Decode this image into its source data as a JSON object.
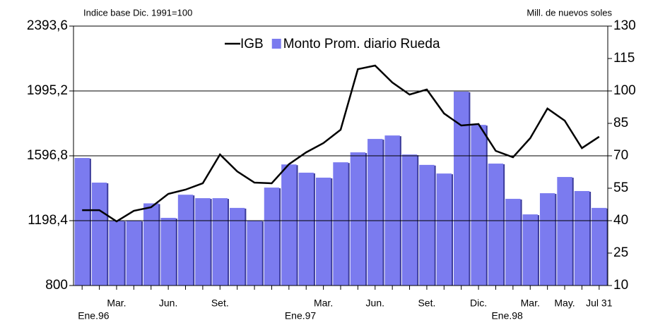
{
  "chart_data": {
    "type": "bar-line",
    "y_label": "Indice base Dic. 1991=100",
    "y2_label": "Mill. de nuevos soles",
    "categories": [
      "Ene.96",
      null,
      "Mar.",
      null,
      null,
      "Jun.",
      null,
      null,
      "Set.",
      null,
      null,
      null,
      "Ene.97",
      null,
      "Mar.",
      null,
      null,
      "Jun.",
      null,
      null,
      "Set.",
      null,
      null,
      "Dic.",
      "Ene.98",
      null,
      "Mar.",
      null,
      "May.",
      null,
      "Jul 31"
    ],
    "series": [
      {
        "name": "IGB",
        "type": "line",
        "color": "#000000",
        "axis": "y",
        "values": [
          1263,
          1263,
          1194,
          1259,
          1281,
          1363,
          1389,
          1428,
          1605,
          1501,
          1432,
          1428,
          1545,
          1618,
          1675,
          1757,
          2129,
          2151,
          2047,
          1973,
          2004,
          1857,
          1783,
          1792,
          1627,
          1588,
          1705,
          1887,
          1813,
          1644,
          1714
        ]
      },
      {
        "name": "Monto Prom. diario Rueda",
        "type": "bar",
        "color": "#7b7bef",
        "axis": "y2",
        "values": [
          69,
          57.6,
          40,
          40,
          48,
          41.3,
          52,
          50.4,
          50.4,
          45.9,
          40,
          55.3,
          66,
          62.2,
          59.9,
          67,
          71.6,
          77.8,
          79.4,
          70.6,
          65.8,
          61.8,
          99.7,
          84.3,
          66.4,
          50.1,
          42.9,
          52.7,
          60.2,
          53.7,
          45.9
        ]
      }
    ],
    "ylim": [
      800,
      2393.6
    ],
    "yticks": [
      800,
      {
        "value": 1198.4,
        "label": "1198,4"
      },
      {
        "value": 1596.8,
        "label": "1596,8"
      },
      {
        "value": 1995.2,
        "label": "1995,2"
      },
      {
        "value": 2393.6,
        "label": "2393,6"
      }
    ],
    "y2lim": [
      10,
      130
    ],
    "y2ticks": [
      10,
      25,
      40,
      55,
      70,
      85,
      100,
      115,
      130
    ],
    "grid": true
  }
}
